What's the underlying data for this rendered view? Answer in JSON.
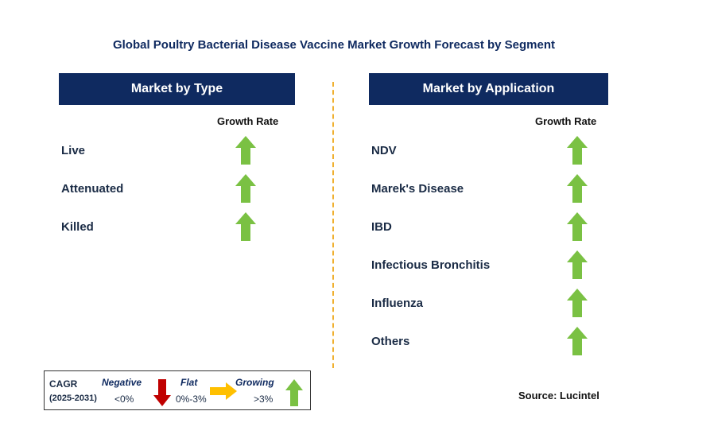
{
  "title": "Global Poultry Bacterial Disease Vaccine Market Growth Forecast by Segment",
  "left_panel": {
    "header": "Market by Type",
    "column_header": "Growth Rate",
    "items": [
      {
        "label": "Live",
        "trend": "growing"
      },
      {
        "label": "Attenuated",
        "trend": "growing"
      },
      {
        "label": "Killed",
        "trend": "growing"
      }
    ]
  },
  "right_panel": {
    "header": "Market by Application",
    "column_header": "Growth Rate",
    "items": [
      {
        "label": "NDV",
        "trend": "growing"
      },
      {
        "label": "Marek's Disease",
        "trend": "growing"
      },
      {
        "label": "IBD",
        "trend": "growing"
      },
      {
        "label": "Infectious Bronchitis",
        "trend": "growing"
      },
      {
        "label": "Influenza",
        "trend": "growing"
      },
      {
        "label": "Others",
        "trend": "growing"
      }
    ]
  },
  "legend": {
    "cagr_label": "CAGR",
    "period": "(2025-2031)",
    "negative": {
      "label": "Negative",
      "range": "<0%",
      "color": "#c00000"
    },
    "flat": {
      "label": "Flat",
      "range": "0%-3%",
      "color": "#ffc000"
    },
    "growing": {
      "label": "Growing",
      "range": ">3%",
      "color": "#7ac143"
    }
  },
  "source": "Source: Lucintel",
  "colors": {
    "header_bg": "#0f2a60",
    "up_arrow": "#7ac143",
    "divider": "#f0b030"
  }
}
